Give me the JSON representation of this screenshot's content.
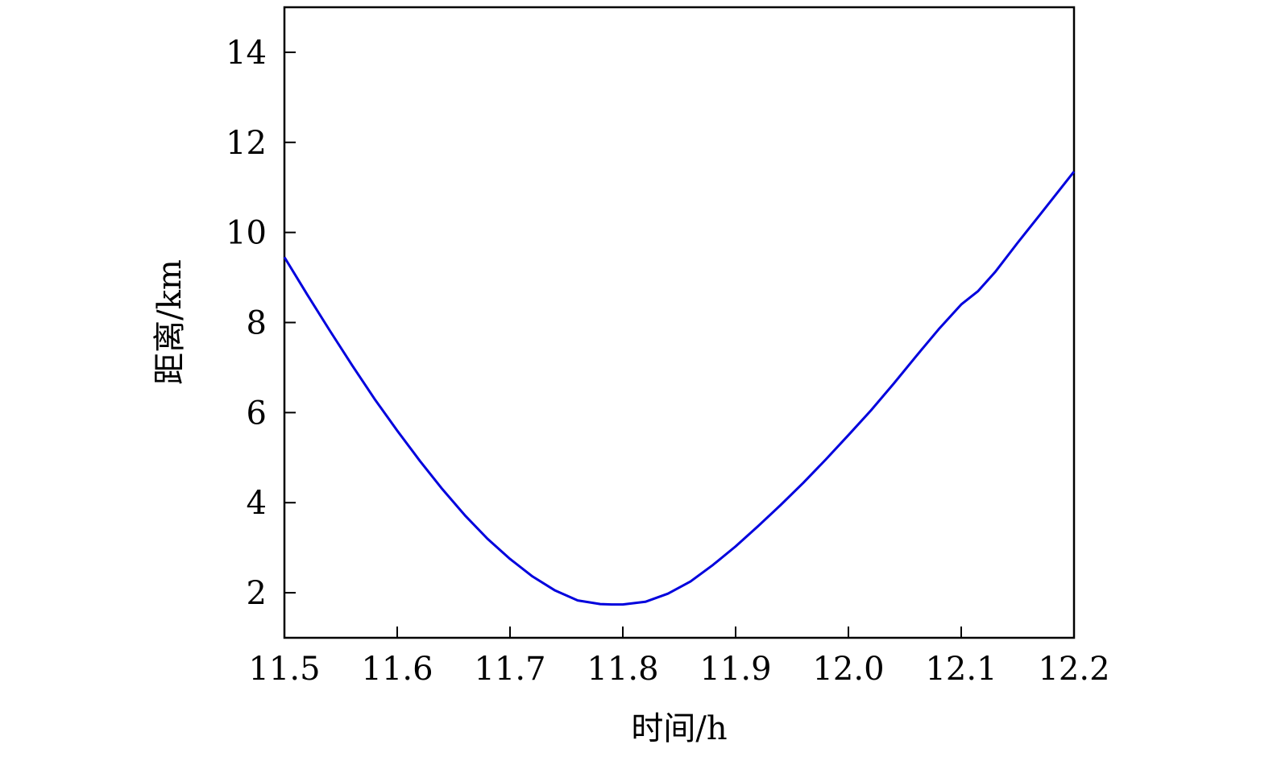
{
  "chart_data": {
    "type": "line",
    "title": "",
    "xlabel": "时间/h",
    "ylabel": "距离/km",
    "xlim": [
      11.5,
      12.2
    ],
    "ylim": [
      1,
      15
    ],
    "xticks": [
      11.5,
      11.6,
      11.7,
      11.8,
      11.9,
      12.0,
      12.1,
      12.2
    ],
    "xtick_labels": [
      "11.5",
      "11.6",
      "11.7",
      "11.8",
      "11.9",
      "12.0",
      "12.1",
      "12.2"
    ],
    "yticks": [
      2,
      4,
      6,
      8,
      10,
      12,
      14
    ],
    "ytick_labels": [
      "2",
      "4",
      "6",
      "8",
      "10",
      "12",
      "14"
    ],
    "grid": false,
    "legend": "none",
    "series": [
      {
        "color": "#0000dd",
        "x": [
          11.5,
          11.52,
          11.54,
          11.56,
          11.58,
          11.6,
          11.62,
          11.64,
          11.66,
          11.68,
          11.7,
          11.72,
          11.74,
          11.76,
          11.78,
          11.79,
          11.8,
          11.82,
          11.84,
          11.86,
          11.88,
          11.9,
          11.92,
          11.94,
          11.96,
          11.98,
          12.0,
          12.02,
          12.04,
          12.06,
          12.08,
          12.1,
          12.115,
          12.13,
          12.15,
          12.17,
          12.2
        ],
        "y": [
          9.45,
          8.63,
          7.83,
          7.05,
          6.3,
          5.6,
          4.93,
          4.3,
          3.72,
          3.2,
          2.75,
          2.36,
          2.05,
          1.83,
          1.75,
          1.74,
          1.74,
          1.8,
          1.98,
          2.25,
          2.62,
          3.03,
          3.48,
          3.95,
          4.44,
          4.96,
          5.5,
          6.05,
          6.64,
          7.25,
          7.85,
          8.4,
          8.7,
          9.12,
          9.77,
          10.4,
          11.35
        ]
      }
    ]
  }
}
